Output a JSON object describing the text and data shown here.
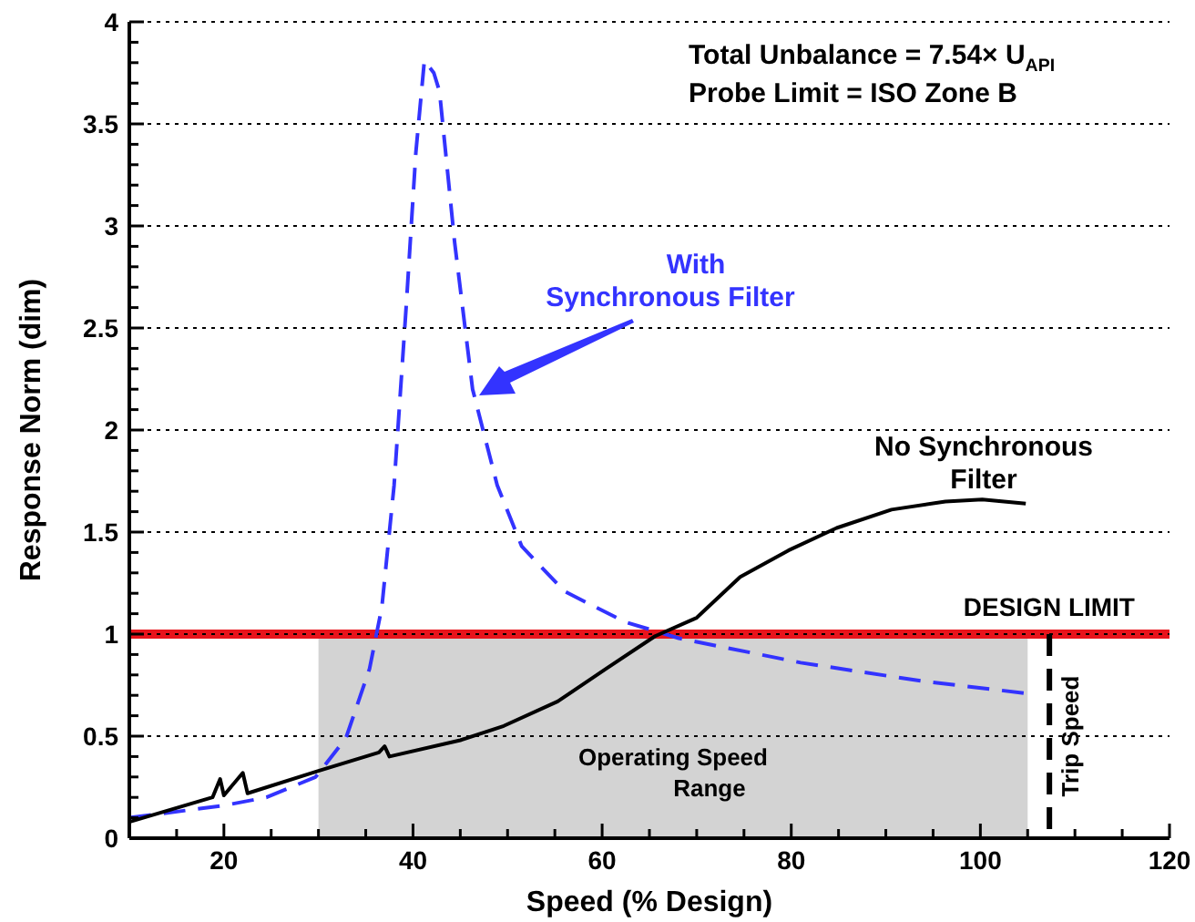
{
  "chart_data": {
    "type": "line",
    "xlabel": "Speed (% Design)",
    "ylabel": "Response Norm (dim)",
    "xlim": [
      10,
      120
    ],
    "ylim": [
      0,
      4
    ],
    "xticks": [
      {
        "value": 15,
        "label": null
      },
      20,
      {
        "value": 25,
        "label": null
      },
      {
        "value": 30,
        "label": null
      },
      {
        "value": 35,
        "label": null
      },
      40,
      {
        "value": 45,
        "label": null
      },
      {
        "value": 50,
        "label": null
      },
      {
        "value": 55,
        "label": null
      },
      60,
      {
        "value": 65,
        "label": null
      },
      {
        "value": 70,
        "label": null
      },
      {
        "value": 75,
        "label": null
      },
      80,
      {
        "value": 85,
        "label": null
      },
      {
        "value": 90,
        "label": null
      },
      {
        "value": 95,
        "label": null
      },
      100,
      {
        "value": 105,
        "label": null
      },
      {
        "value": 110,
        "label": null
      },
      {
        "value": 115,
        "label": null
      },
      120
    ],
    "yticks": [
      0,
      {
        "value": 0.1,
        "label": null
      },
      {
        "value": 0.2,
        "label": null
      },
      {
        "value": 0.3,
        "label": null
      },
      {
        "value": 0.4,
        "label": null
      },
      0.5,
      {
        "value": 0.6,
        "label": null
      },
      {
        "value": 0.7,
        "label": null
      },
      {
        "value": 0.8,
        "label": null
      },
      {
        "value": 0.9,
        "label": null
      },
      1,
      {
        "value": 1.1,
        "label": null
      },
      {
        "value": 1.2,
        "label": null
      },
      {
        "value": 1.3,
        "label": null
      },
      {
        "value": 1.4,
        "label": null
      },
      1.5,
      {
        "value": 1.6,
        "label": null
      },
      {
        "value": 1.7,
        "label": null
      },
      {
        "value": 1.8,
        "label": null
      },
      {
        "value": 1.9,
        "label": null
      },
      2,
      {
        "value": 2.1,
        "label": null
      },
      {
        "value": 2.2,
        "label": null
      },
      {
        "value": 2.3,
        "label": null
      },
      {
        "value": 2.4,
        "label": null
      },
      2.5,
      {
        "value": 2.6,
        "label": null
      },
      {
        "value": 2.7,
        "label": null
      },
      {
        "value": 2.8,
        "label": null
      },
      {
        "value": 2.9,
        "label": null
      },
      3,
      {
        "value": 3.1,
        "label": null
      },
      {
        "value": 3.2,
        "label": null
      },
      {
        "value": 3.3,
        "label": null
      },
      {
        "value": 3.4,
        "label": null
      },
      3.5,
      {
        "value": 3.6,
        "label": null
      },
      {
        "value": 3.7,
        "label": null
      },
      {
        "value": 3.8,
        "label": null
      },
      {
        "value": 3.9,
        "label": null
      },
      4
    ],
    "grid": "y",
    "marker": "none",
    "series": [
      {
        "name": "With Synchronous Filter",
        "color": "#3333ff",
        "line_style": "dashed",
        "x": [
          10,
          20,
          24.5,
          29.7,
          32.9,
          35.4,
          36.7,
          38,
          39.3,
          40.3,
          41.2,
          42.2,
          42.8,
          44.4,
          46.3,
          48.9,
          51.5,
          56,
          62.4,
          68.1,
          81,
          93.8,
          104.8
        ],
        "values": [
          0.1,
          0.16,
          0.2,
          0.3,
          0.49,
          0.83,
          1.13,
          1.73,
          2.62,
          3.36,
          3.81,
          3.75,
          3.66,
          2.92,
          2.2,
          1.73,
          1.43,
          1.21,
          1.06,
          0.98,
          0.86,
          0.77,
          0.71
        ]
      },
      {
        "name": "No Synchronous Filter",
        "color": "#000000",
        "line_style": "solid",
        "x": [
          10,
          18.8,
          19.6,
          20,
          22,
          22.5,
          30,
          36.4,
          37,
          37.5,
          45,
          49.6,
          55.3,
          60.4,
          65.6,
          70,
          74.6,
          79.7,
          84.8,
          90.6,
          96.3,
          100.2,
          104.8
        ],
        "values": [
          0.08,
          0.2,
          0.29,
          0.21,
          0.32,
          0.22,
          0.33,
          0.42,
          0.45,
          0.4,
          0.48,
          0.55,
          0.67,
          0.83,
          0.99,
          1.08,
          1.28,
          1.41,
          1.52,
          1.61,
          1.65,
          1.66,
          1.64
        ]
      }
    ],
    "ref_lines": [
      {
        "axis": "y",
        "value": 1,
        "label": "DESIGN LIMIT",
        "color": "#e8141c",
        "line_style": "solid"
      },
      {
        "axis": "x",
        "value": 107.3,
        "label": "Trip Speed",
        "color": "#000000",
        "line_style": "dashed"
      }
    ],
    "bands": [
      {
        "axis": "x",
        "from": 30,
        "to": 105,
        "label": "Operating Speed Range",
        "color": "#d3d3d3"
      }
    ],
    "annotations": [
      "Total Unbalance = 7.54× U$_{API}$",
      "Probe Limit = ISO Zone B"
    ]
  }
}
